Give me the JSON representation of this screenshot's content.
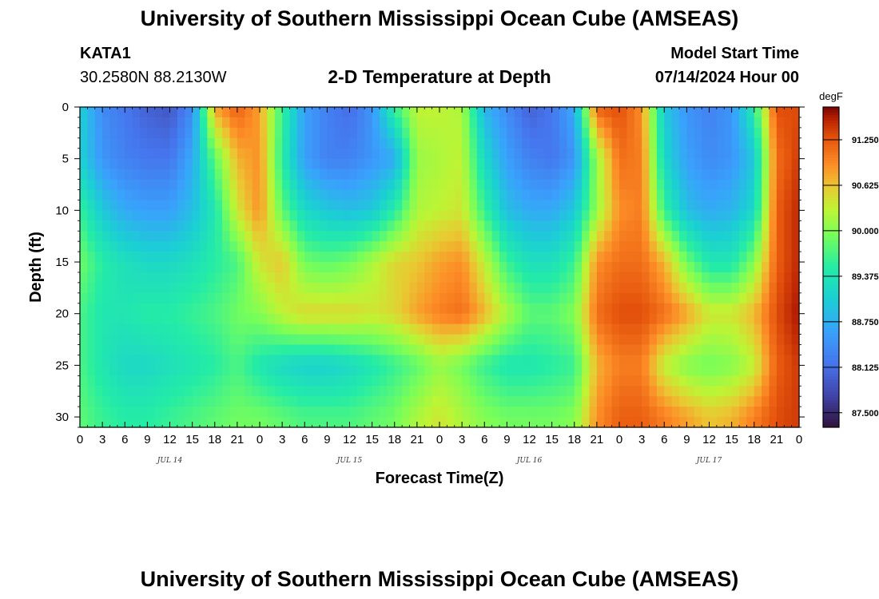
{
  "header": {
    "title": "University of Southern Mississippi Ocean Cube (AMSEAS)",
    "station": "KATA1",
    "coords": "30.2580N  88.2130W",
    "plot_title": "2-D Temperature at Depth",
    "model_start_label": "Model Start Time",
    "model_start_value": "07/14/2024 Hour 00"
  },
  "footer": {
    "title": "University of Southern Mississippi Ocean Cube (AMSEAS)"
  },
  "chart_data": {
    "type": "heatmap",
    "xlabel": "Forecast Time(Z)",
    "ylabel": "Depth (ft)",
    "x_range_hours": [
      0,
      96
    ],
    "y_range_ft": [
      0,
      31
    ],
    "x_tick_labels": [
      "0",
      "3",
      "6",
      "9",
      "12",
      "15",
      "18",
      "21",
      "0",
      "3",
      "6",
      "9",
      "12",
      "15",
      "18",
      "21",
      "0",
      "3",
      "6",
      "9",
      "12",
      "15",
      "18",
      "21",
      "0",
      "3",
      "6",
      "9",
      "12",
      "15",
      "18",
      "21",
      "0"
    ],
    "day_labels": [
      {
        "label": "JUL 14",
        "hour": 12
      },
      {
        "label": "JUL 15",
        "hour": 36
      },
      {
        "label": "JUL 16",
        "hour": 60
      },
      {
        "label": "JUL 17",
        "hour": 84
      }
    ],
    "y_ticks": [
      0,
      5,
      10,
      15,
      20,
      25,
      30
    ],
    "colorbar": {
      "unit": "degF",
      "range": [
        87.3,
        91.7
      ],
      "ticks": [
        "91.250",
        "90.625",
        "90.000",
        "89.375",
        "88.750",
        "88.125",
        "87.500"
      ]
    },
    "time_hours": [
      0,
      3,
      6,
      9,
      12,
      15,
      18,
      21,
      24,
      27,
      30,
      33,
      36,
      39,
      42,
      45,
      48,
      51,
      54,
      57,
      60,
      63,
      66,
      69,
      72,
      75,
      78,
      81,
      84,
      87,
      90,
      93,
      96
    ],
    "depths_ft": [
      0,
      5,
      10,
      15,
      20,
      25,
      30
    ],
    "values_degF": [
      [
        89.1,
        88.4,
        88.2,
        88.0,
        87.9,
        88.4,
        90.8,
        91.2,
        90.8,
        89.6,
        88.6,
        88.3,
        88.1,
        88.5,
        89.6,
        90.3,
        90.3,
        90.2,
        88.8,
        88.4,
        88.0,
        88.2,
        88.7,
        91.2,
        91.3,
        90.9,
        89.0,
        88.5,
        88.3,
        88.5,
        89.5,
        91.3,
        91.3
      ],
      [
        89.1,
        88.5,
        88.3,
        88.2,
        88.2,
        88.7,
        89.8,
        90.7,
        90.9,
        89.5,
        88.6,
        88.3,
        88.3,
        88.5,
        88.7,
        90.1,
        90.2,
        90.3,
        89.2,
        88.6,
        88.3,
        88.2,
        88.5,
        90.1,
        91.1,
        91.0,
        89.2,
        88.6,
        88.4,
        88.5,
        89.0,
        91.1,
        91.4
      ],
      [
        89.6,
        89.0,
        88.7,
        88.6,
        88.6,
        88.9,
        89.4,
        90.4,
        90.9,
        89.8,
        89.2,
        89.0,
        88.9,
        89.0,
        89.5,
        90.2,
        90.3,
        90.4,
        89.6,
        88.9,
        88.7,
        88.7,
        89.0,
        90.1,
        90.9,
        91.0,
        89.6,
        88.9,
        88.7,
        88.8,
        89.2,
        91.2,
        91.5
      ],
      [
        89.9,
        89.5,
        89.3,
        89.2,
        89.2,
        89.3,
        89.5,
        89.7,
        90.4,
        90.6,
        89.9,
        89.8,
        89.9,
        90.2,
        90.5,
        90.6,
        90.8,
        90.9,
        90.3,
        89.6,
        89.3,
        89.3,
        89.6,
        90.9,
        91.1,
        91.1,
        90.7,
        89.9,
        89.4,
        89.4,
        90.0,
        91.2,
        91.5
      ],
      [
        89.7,
        89.4,
        89.4,
        89.5,
        89.5,
        89.6,
        89.7,
        89.9,
        90.0,
        90.3,
        90.5,
        90.5,
        90.5,
        90.4,
        90.5,
        90.8,
        91.0,
        91.1,
        90.7,
        90.2,
        89.8,
        89.8,
        90.0,
        91.1,
        91.3,
        91.3,
        91.1,
        90.8,
        90.4,
        90.4,
        90.7,
        91.3,
        91.6
      ],
      [
        89.7,
        89.4,
        89.2,
        89.2,
        89.3,
        89.4,
        89.5,
        89.7,
        89.4,
        89.2,
        89.1,
        89.1,
        89.2,
        89.4,
        89.6,
        89.8,
        90.1,
        89.9,
        89.6,
        89.4,
        89.4,
        89.5,
        89.6,
        90.7,
        91.0,
        91.0,
        90.3,
        90.0,
        89.9,
        90.0,
        90.3,
        91.2,
        91.4
      ],
      [
        89.8,
        89.6,
        89.5,
        89.5,
        89.6,
        89.7,
        89.8,
        89.9,
        89.9,
        89.8,
        89.7,
        89.7,
        89.7,
        89.8,
        89.9,
        90.2,
        90.4,
        90.2,
        90.0,
        89.9,
        89.9,
        89.9,
        90.0,
        90.9,
        91.2,
        91.2,
        91.0,
        90.8,
        90.6,
        90.7,
        91.0,
        91.3,
        91.4
      ]
    ]
  }
}
